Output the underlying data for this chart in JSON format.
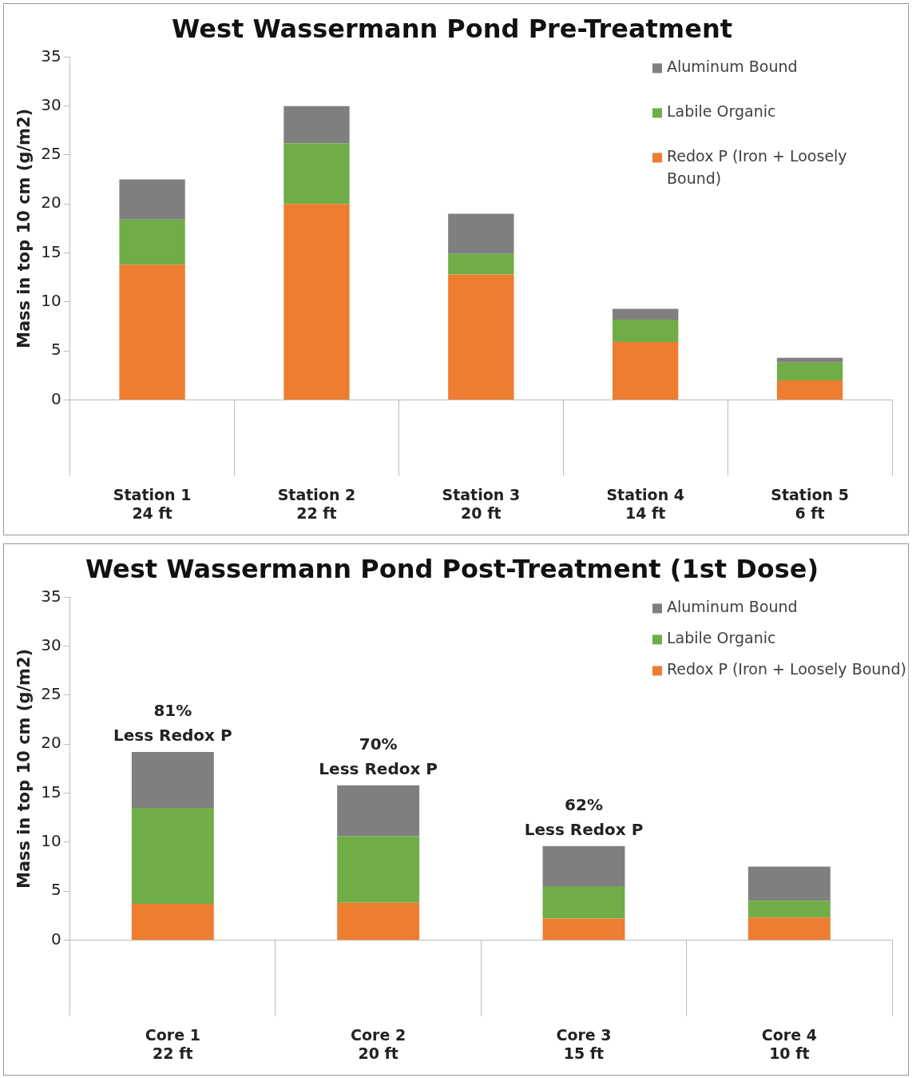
{
  "chart_data": [
    {
      "type": "bar",
      "title": "West Wassermann Pond Pre-Treatment",
      "ylabel": "Mass in top 10 cm (g/m2)",
      "stacked": true,
      "legend": "top right",
      "categories": [
        "Station 1\n24 ft",
        "Station 2\n22 ft",
        "Station 3\n20 ft",
        "Station 4\n14 ft",
        "Station 5\n6 ft"
      ],
      "series": [
        {
          "name": "Redox P (Iron + Loosely Bound)",
          "color": "#ed7d31",
          "values": [
            13.8,
            20.0,
            12.8,
            5.9,
            2.0
          ]
        },
        {
          "name": "Labile Organic",
          "color": "#70ad47",
          "values": [
            4.6,
            6.2,
            2.1,
            2.3,
            1.8
          ]
        },
        {
          "name": "Aluminum Bound",
          "color": "#7f7f7f",
          "values": [
            4.1,
            3.8,
            4.1,
            1.1,
            0.5
          ]
        }
      ],
      "ylim": [
        0,
        35
      ],
      "yticks": [
        0,
        5,
        10,
        15,
        20,
        25,
        30,
        35
      ]
    },
    {
      "type": "bar",
      "title": "West Wassermann Pond Post-Treatment (1st Dose)",
      "ylabel": "Mass in top 10 cm (g/m2)",
      "stacked": true,
      "legend": "top right",
      "categories": [
        "Core 1\n22 ft",
        "Core 2\n20 ft",
        "Core 3\n15 ft",
        "Core 4\n10 ft"
      ],
      "series": [
        {
          "name": "Redox P (Iron + Loosely Bound)",
          "color": "#ed7d31",
          "values": [
            3.7,
            3.8,
            2.2,
            2.3
          ]
        },
        {
          "name": "Labile Organic",
          "color": "#70ad47",
          "values": [
            9.8,
            6.8,
            3.3,
            1.7
          ]
        },
        {
          "name": "Aluminum Bound",
          "color": "#7f7f7f",
          "values": [
            5.7,
            5.2,
            4.1,
            3.5
          ]
        }
      ],
      "ylim": [
        0,
        35
      ],
      "yticks": [
        0,
        5,
        10,
        15,
        20,
        25,
        30,
        35
      ],
      "annotations": [
        {
          "text": "81%\nLess Redox P",
          "x": "Core 1\n22 ft",
          "y": 19.2
        },
        {
          "text": "70%\nLess Redox P",
          "x": "Core 2\n20 ft",
          "y": 15.8
        },
        {
          "text": "62%\nLess Redox P",
          "x": "Core 3\n15 ft",
          "y": 9.6
        }
      ]
    }
  ]
}
